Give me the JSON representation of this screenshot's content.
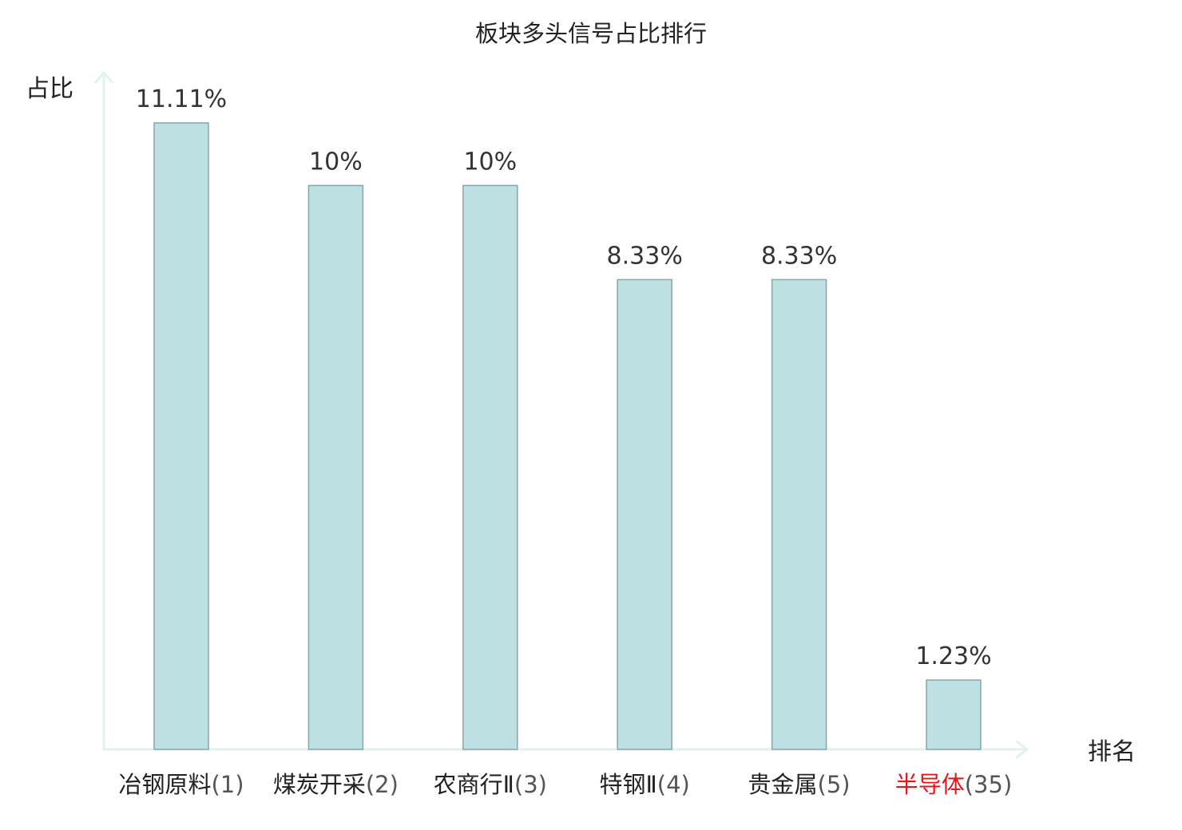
{
  "chart_data": {
    "type": "bar",
    "title": "板块多头信号占比排行",
    "ylabel": "占比",
    "xlabel": "排名",
    "categories": [
      {
        "name": "冶钢原料",
        "rank": "(1)",
        "highlight": false
      },
      {
        "name": "煤炭开采",
        "rank": "(2)",
        "highlight": false
      },
      {
        "name": "农商行Ⅱ",
        "rank": "(3)",
        "highlight": false
      },
      {
        "name": "特钢Ⅱ",
        "rank": "(4)",
        "highlight": false
      },
      {
        "name": "贵金属",
        "rank": "(5)",
        "highlight": false
      },
      {
        "name": "半导体",
        "rank": "(35)",
        "highlight": true
      }
    ],
    "values": [
      11.11,
      10,
      10,
      8.33,
      8.33,
      1.23
    ],
    "value_labels": [
      "11.11%",
      "10%",
      "10%",
      "8.33%",
      "8.33%",
      "1.23%"
    ],
    "ylim": [
      0,
      11.11
    ],
    "grid": false,
    "legend": "none"
  },
  "colors": {
    "bar_fill": "#bde0e2",
    "bar_stroke": "#8aa6a8",
    "axis": "#e0f2ef",
    "text": "#222222",
    "value_text": "#333333",
    "highlight": "#e8151b"
  }
}
